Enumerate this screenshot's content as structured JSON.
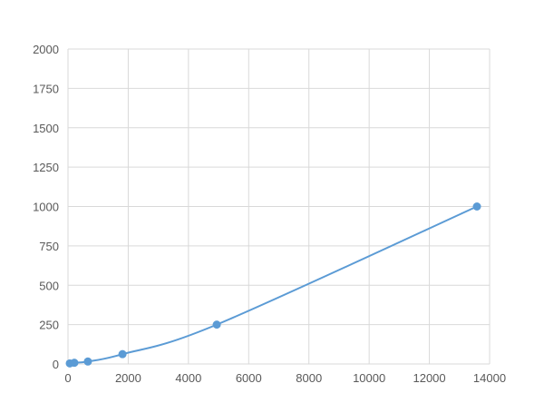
{
  "chart_data": {
    "type": "scatter",
    "title": "",
    "xlabel": "",
    "ylabel": "",
    "xlim": [
      0,
      14000
    ],
    "ylim": [
      0,
      2000
    ],
    "xticks": [
      0,
      2000,
      4000,
      6000,
      8000,
      10000,
      12000,
      14000
    ],
    "yticks": [
      0,
      250,
      500,
      750,
      1000,
      1250,
      1500,
      1750,
      2000
    ],
    "grid": true,
    "series": [
      {
        "x": [
          60,
          210,
          660,
          1810,
          4940,
          13580
        ],
        "y": [
          3.9,
          7.8,
          15.6,
          62.5,
          250,
          1000
        ],
        "color": "#5b9bd5",
        "smooth_line": true
      }
    ]
  }
}
